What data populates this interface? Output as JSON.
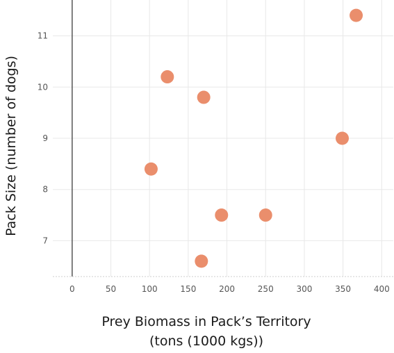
{
  "chart_data": {
    "type": "scatter",
    "xlabel_line1": "Prey Biomass in Pack’s Territory",
    "xlabel_line2": "(tons (1000 kgs))",
    "ylabel": "Pack Size (number of dogs)",
    "xlim": [
      -25,
      415
    ],
    "ylim": [
      6.3,
      11.7
    ],
    "x_ticks": [
      0,
      50,
      100,
      150,
      200,
      250,
      300,
      350,
      400
    ],
    "y_ticks": [
      7,
      8,
      9,
      10,
      11
    ],
    "grid": true,
    "marker_color": "#EA8E6C",
    "points": [
      {
        "x": 367,
        "y": 11.4
      },
      {
        "x": 123,
        "y": 10.2
      },
      {
        "x": 170,
        "y": 9.8
      },
      {
        "x": 349,
        "y": 9.0
      },
      {
        "x": 102,
        "y": 8.4
      },
      {
        "x": 193,
        "y": 7.5
      },
      {
        "x": 250,
        "y": 7.5
      },
      {
        "x": 167,
        "y": 6.6
      }
    ]
  }
}
